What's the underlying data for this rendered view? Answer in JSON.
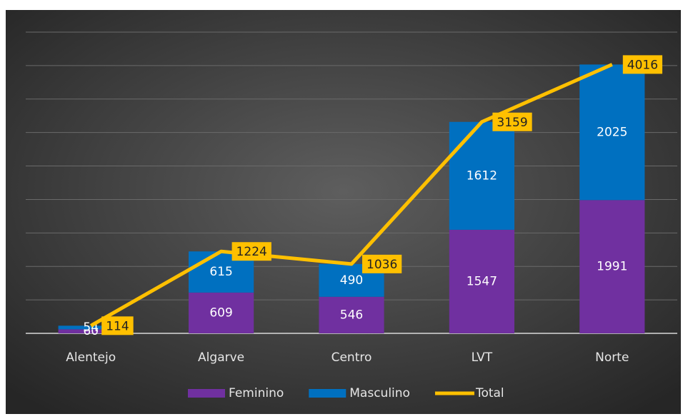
{
  "chart_data": {
    "type": "bar",
    "categories": [
      "Alentejo",
      "Algarve",
      "Centro",
      "LVT",
      "Norte"
    ],
    "series": [
      {
        "name": "Feminino",
        "color": "#7030a0",
        "values": [
          60,
          609,
          546,
          1547,
          1991
        ]
      },
      {
        "name": "Masculino",
        "color": "#0070c0",
        "values": [
          54,
          615,
          490,
          1612,
          2025
        ]
      },
      {
        "name": "Total",
        "type": "line",
        "color": "#ffc000",
        "values": [
          114,
          1224,
          1036,
          3159,
          4016
        ]
      }
    ],
    "ylim": [
      0,
      4500
    ],
    "yticks": [
      0,
      500,
      1000,
      1500,
      2000,
      2500,
      3000,
      3500,
      4000,
      4500
    ],
    "grid": true,
    "legend": "bottom",
    "stacked": true
  }
}
